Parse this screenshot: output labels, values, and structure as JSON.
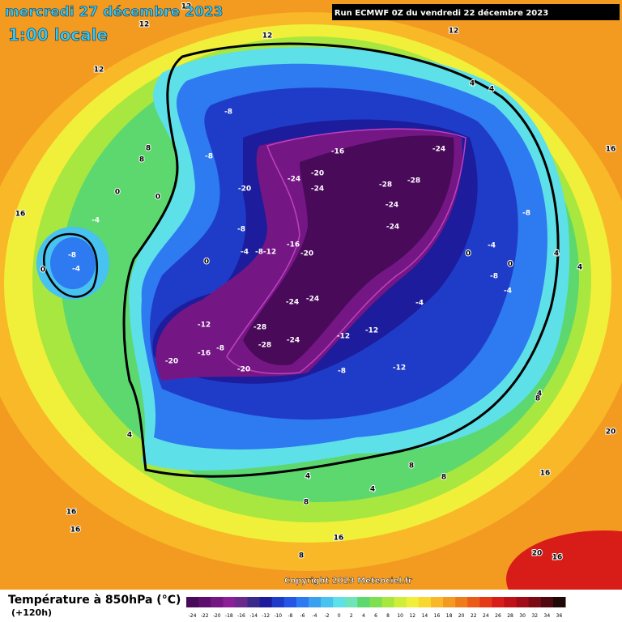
{
  "header": {
    "date": "mercredi 27 décembre 2023",
    "time": "1:00 locale",
    "run": "Run ECMWF 0Z du vendredi 22 décembre 2023"
  },
  "footer": {
    "title": "Température à 850hPa (°C)",
    "lead": "(+120h)",
    "copyright": "Copyright 2023 Meteociel.fr"
  },
  "scale": {
    "ticks": [
      -24,
      -22,
      -20,
      -18,
      -16,
      -14,
      -12,
      -10,
      -8,
      -6,
      -4,
      -2,
      0,
      2,
      4,
      6,
      8,
      10,
      12,
      14,
      16,
      18,
      20,
      22,
      24,
      26,
      28,
      30,
      32,
      34,
      36
    ],
    "colors": [
      "#4a0a5a",
      "#5e0f6e",
      "#741784",
      "#8a1f98",
      "#6a2a8c",
      "#3a2a8a",
      "#1c1c9c",
      "#1f3cc8",
      "#2656e6",
      "#2e7af0",
      "#3aa0f0",
      "#48c2ee",
      "#5ee0e8",
      "#6ee4b8",
      "#5cd86e",
      "#7ee050",
      "#a8e640",
      "#cfee3a",
      "#f0f03a",
      "#f8d830",
      "#f8b828",
      "#f39a20",
      "#ef7c1c",
      "#ea5a18",
      "#e43a16",
      "#d81c18",
      "#c01018",
      "#a00c18",
      "#7c0a14",
      "#500810",
      "#200808"
    ]
  },
  "map": {
    "contour_labels": [
      12,
      12,
      12,
      12,
      12,
      4,
      4,
      4,
      4,
      4,
      4,
      4,
      4,
      8,
      8,
      8,
      8,
      8,
      8,
      8,
      16,
      16,
      16,
      16,
      16,
      16,
      16,
      20,
      20,
      -8,
      -8,
      -8,
      -8,
      -8,
      -8,
      -8,
      -8,
      -8,
      -4,
      -4,
      -4,
      -4,
      -4,
      -4,
      0,
      0,
      0,
      0,
      0,
      0,
      -16,
      -16,
      -16,
      -12,
      -12,
      -12,
      -12,
      -20,
      -20,
      -20,
      -20,
      -20,
      -24,
      -24,
      -24,
      -24,
      -24,
      -24,
      -24,
      -24,
      -28,
      -28,
      -28,
      -28,
      -12
    ]
  }
}
